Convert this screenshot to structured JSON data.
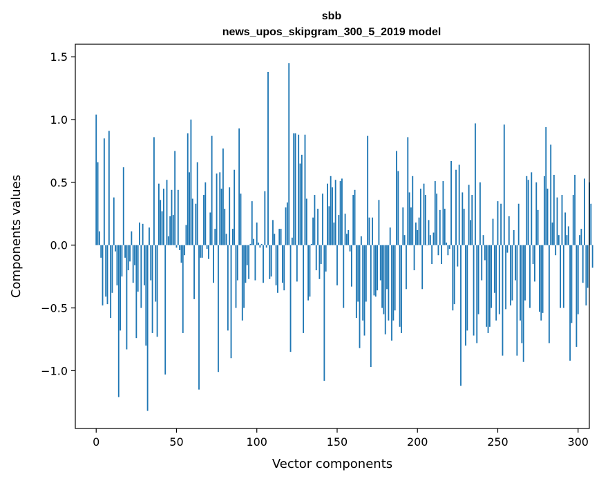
{
  "chart_data": {
    "type": "bar",
    "title": "sbb",
    "subtitle": "news_upos_skipgram_300_5_2019 model",
    "xlabel": "Vector components",
    "ylabel": "Components values",
    "xlim": [
      -13,
      307
    ],
    "ylim": [
      -1.46,
      1.6
    ],
    "xticks": [
      0,
      50,
      100,
      150,
      200,
      250,
      300
    ],
    "yticks": [
      -1.0,
      -0.5,
      0.0,
      0.5,
      1.0,
      1.5
    ],
    "xtick_labels": [
      "0",
      "50",
      "100",
      "150",
      "200",
      "250",
      "300"
    ],
    "ytick_labels": [
      "−1.0",
      "−0.5",
      "0.0",
      "0.5",
      "1.0",
      "1.5"
    ],
    "bar_color": "#1f77b4",
    "values": [
      1.04,
      0.66,
      0.11,
      -0.1,
      -0.48,
      0.85,
      -0.41,
      -0.47,
      0.91,
      -0.58,
      -0.38,
      0.38,
      -0.05,
      -0.32,
      -1.21,
      -0.68,
      -0.25,
      0.62,
      -0.1,
      -0.83,
      -0.2,
      -0.13,
      0.11,
      -0.3,
      -0.16,
      -0.74,
      -0.37,
      0.18,
      -0.5,
      0.17,
      -0.32,
      -0.8,
      -1.32,
      0.14,
      -0.28,
      -0.7,
      0.86,
      -0.45,
      -0.73,
      0.49,
      0.36,
      0.27,
      0.45,
      -1.03,
      0.52,
      0.07,
      0.23,
      0.44,
      0.24,
      0.75,
      -0.02,
      0.44,
      -0.04,
      -0.14,
      -0.7,
      -0.08,
      0.16,
      0.89,
      0.58,
      1.0,
      0.37,
      -0.43,
      0.33,
      0.66,
      -1.15,
      -0.1,
      -0.1,
      0.4,
      0.5,
      -0.03,
      -0.11,
      0.26,
      0.87,
      -0.3,
      0.13,
      0.57,
      -1.01,
      0.58,
      0.45,
      0.77,
      0.29,
      0.09,
      -0.68,
      0.46,
      -0.9,
      0.13,
      0.6,
      -0.5,
      -0.28,
      0.93,
      0.41,
      -0.6,
      -0.5,
      -0.3,
      -0.16,
      -0.27,
      0.01,
      0.35,
      0.05,
      -0.28,
      0.18,
      0.02,
      -0.02,
      0.01,
      -0.3,
      0.43,
      -0.02,
      1.38,
      -0.27,
      -0.25,
      0.2,
      0.09,
      -0.32,
      -0.38,
      0.13,
      0.13,
      -0.3,
      -0.36,
      0.3,
      0.34,
      1.45,
      -0.85,
      0.06,
      0.89,
      0.89,
      -0.29,
      0.88,
      0.65,
      0.72,
      -0.7,
      0.88,
      0.37,
      -0.44,
      -0.41,
      0.01,
      0.22,
      0.4,
      -0.2,
      0.29,
      -0.27,
      -0.15,
      0.41,
      -1.08,
      -0.21,
      0.49,
      0.31,
      0.55,
      0.46,
      0.18,
      0.52,
      -0.32,
      0.24,
      0.51,
      0.53,
      -0.5,
      0.25,
      0.09,
      0.12,
      -0.05,
      -0.33,
      0.4,
      0.44,
      -0.58,
      -0.45,
      -0.82,
      0.07,
      -0.6,
      -0.72,
      -0.45,
      0.87,
      0.22,
      -0.97,
      0.22,
      -0.4,
      -0.41,
      -0.36,
      0.36,
      -0.28,
      -0.5,
      -0.55,
      -0.71,
      -0.35,
      -0.6,
      0.14,
      -0.76,
      -0.6,
      -0.52,
      0.75,
      0.59,
      -0.65,
      -0.7,
      0.3,
      0.08,
      -0.35,
      0.86,
      0.42,
      0.3,
      0.55,
      -0.2,
      0.18,
      0.12,
      0.22,
      0.45,
      -0.35,
      0.49,
      0.4,
      0.0,
      0.2,
      0.08,
      -0.15,
      0.1,
      0.51,
      0.41,
      -0.08,
      0.28,
      -0.15,
      0.51,
      0.29,
      0.02,
      -0.08,
      -0.03,
      0.67,
      -0.52,
      -0.47,
      0.6,
      -0.17,
      0.64,
      -1.12,
      0.42,
      0.29,
      -0.8,
      -0.68,
      0.48,
      0.2,
      0.4,
      -0.72,
      0.97,
      -0.78,
      -0.55,
      0.5,
      -0.28,
      0.08,
      -0.12,
      -0.65,
      -0.7,
      -0.65,
      -0.5,
      0.21,
      -0.38,
      -0.6,
      0.35,
      -0.55,
      0.33,
      -0.88,
      0.96,
      -0.51,
      -0.06,
      0.23,
      -0.48,
      -0.44,
      0.12,
      -0.28,
      -0.88,
      0.33,
      -0.6,
      -0.78,
      -0.93,
      -0.44,
      0.55,
      0.52,
      -0.5,
      0.58,
      -0.15,
      -0.29,
      0.5,
      0.28,
      -0.53,
      -0.6,
      -0.54,
      0.55,
      0.94,
      0.45,
      -0.78,
      0.8,
      0.18,
      0.56,
      -0.08,
      0.38,
      0.08,
      -0.5,
      0.4,
      -0.5,
      0.26,
      0.08,
      0.15,
      -0.92,
      -0.62,
      0.4,
      0.56,
      -0.81,
      -0.55,
      0.08,
      0.13,
      -0.3,
      0.53,
      -0.48,
      -0.34,
      0.5,
      0.33,
      -0.18
    ]
  }
}
